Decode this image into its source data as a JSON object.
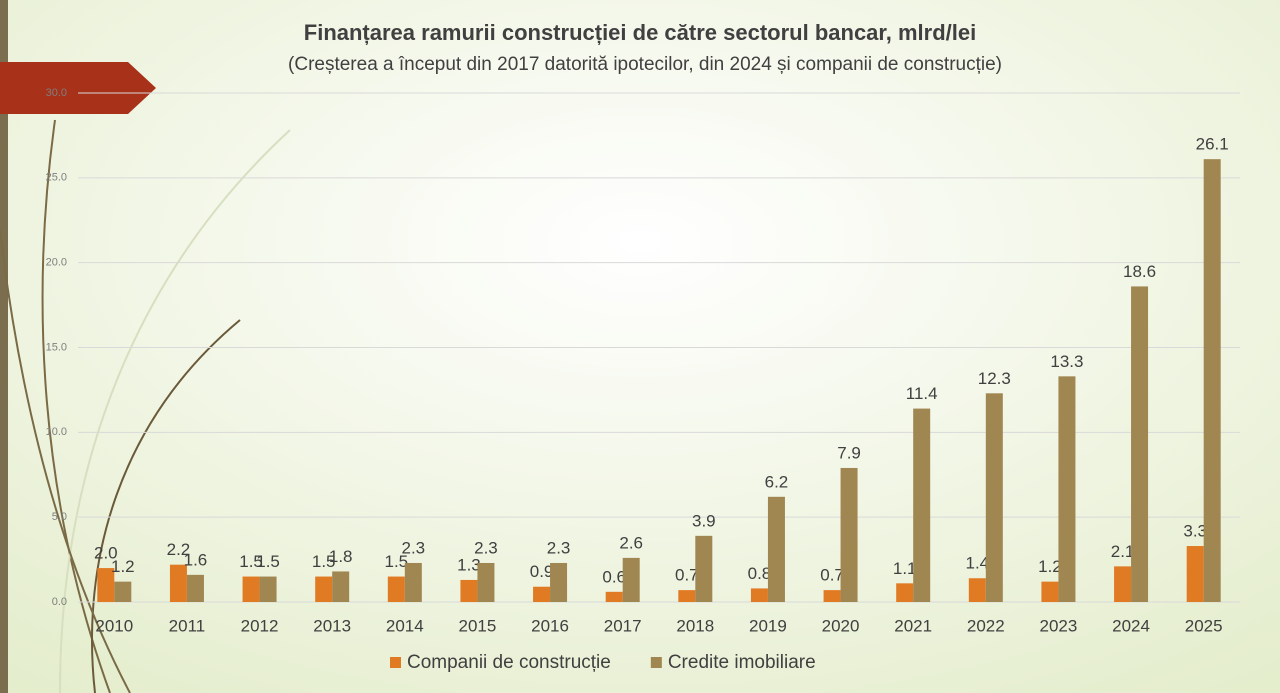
{
  "chart_data": {
    "type": "bar",
    "title": "Finanțarea ramurii construcției de către sectorul bancar, mlrd/lei",
    "subtitle": "(Creșterea a început din 2017 datorită ipotecilor, din 2024 și companii de construcție)",
    "categories": [
      "2010",
      "2011",
      "2012",
      "2013",
      "2014",
      "2015",
      "2016",
      "2017",
      "2018",
      "2019",
      "2020",
      "2021",
      "2022",
      "2023",
      "2024",
      "2025"
    ],
    "series": [
      {
        "name": "Companii de construcție",
        "color": "#e07b24",
        "values": [
          2.0,
          2.2,
          1.5,
          1.5,
          1.5,
          1.3,
          0.9,
          0.6,
          0.7,
          0.8,
          0.7,
          1.1,
          1.4,
          1.2,
          2.1,
          3.3
        ],
        "value_labels": [
          "2.0",
          "2.2",
          "1.5",
          "1.5",
          "1.5",
          "1.3",
          "0.9",
          "0.6",
          "0.7",
          "0.8",
          "0.7",
          "1.1",
          "1.4",
          "1.2",
          "2.1",
          "3.3"
        ]
      },
      {
        "name": "Credite imobiliare",
        "color": "#a08650",
        "values": [
          1.2,
          1.6,
          1.5,
          1.8,
          2.3,
          2.3,
          2.3,
          2.6,
          3.9,
          6.2,
          7.9,
          11.4,
          12.3,
          13.3,
          18.6,
          26.1
        ],
        "value_labels": [
          "1.2",
          "1.6",
          "1.5",
          "1.8",
          "2.3",
          "2.3",
          "2.3",
          "2.6",
          "3.9",
          "6.2",
          "7.9",
          "11.4",
          "12.3",
          "13.3",
          "18.6",
          "26.1"
        ]
      }
    ],
    "ylim": [
      0,
      30
    ],
    "yticks": [
      {
        "value": 0,
        "label": "0.0"
      },
      {
        "value": 5,
        "label": "5.0"
      },
      {
        "value": 10,
        "label": "10.0"
      },
      {
        "value": 15,
        "label": "15.0"
      },
      {
        "value": 20,
        "label": "20.0"
      },
      {
        "value": 25,
        "label": "25.0"
      },
      {
        "value": 30,
        "label": "30.0"
      }
    ],
    "grid": true,
    "legend": "bottom"
  }
}
